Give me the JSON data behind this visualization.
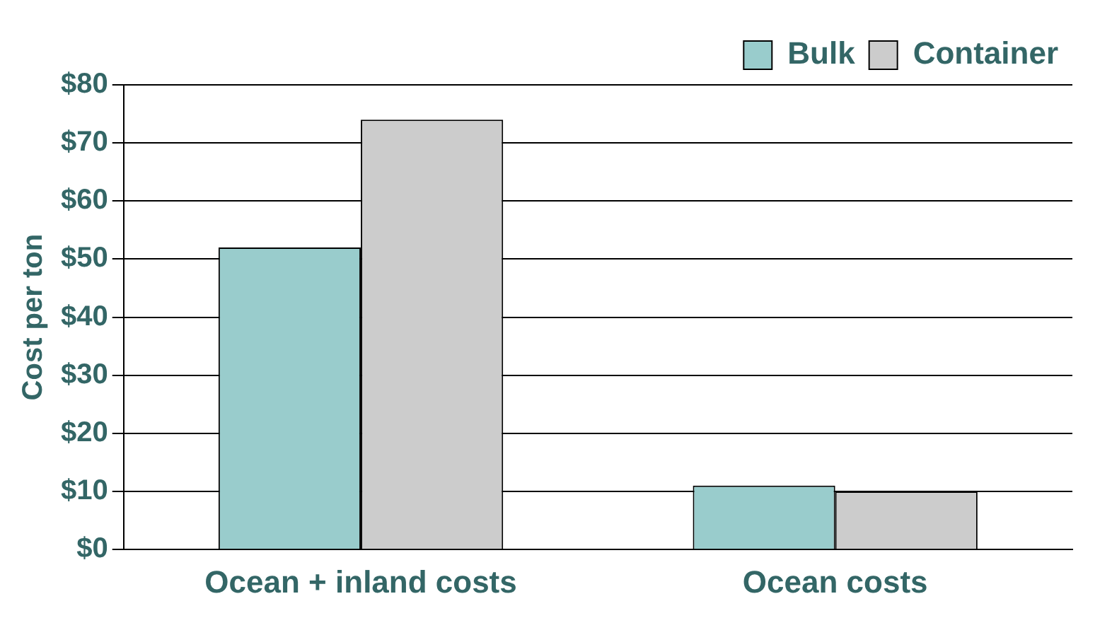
{
  "chart_data": {
    "type": "bar",
    "ylabel": "Cost per ton",
    "categories": [
      "Ocean + inland costs",
      "Ocean costs"
    ],
    "series": [
      {
        "name": "Bulk",
        "color": "#99cccc",
        "values": [
          52,
          11
        ]
      },
      {
        "name": "Container",
        "color": "#cccccc",
        "values": [
          74,
          10
        ]
      }
    ],
    "ylim": [
      0,
      80
    ],
    "yticks": [
      {
        "value": 0,
        "label": "$0"
      },
      {
        "value": 10,
        "label": "$10"
      },
      {
        "value": 20,
        "label": "$20"
      },
      {
        "value": 30,
        "label": "$30"
      },
      {
        "value": 40,
        "label": "$40"
      },
      {
        "value": 50,
        "label": "$50"
      },
      {
        "value": 60,
        "label": "$60"
      },
      {
        "value": 70,
        "label": "$70"
      },
      {
        "value": 80,
        "label": "$80"
      }
    ],
    "grid": "y",
    "legend": "top right"
  }
}
